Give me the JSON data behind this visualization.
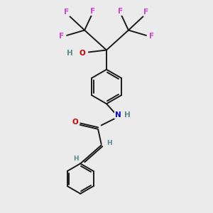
{
  "bg_color": "#ebebeb",
  "bond_color": "#1a1a1a",
  "F_color": "#cc44cc",
  "O_color": "#cc0000",
  "N_color": "#0000cc",
  "H_color": "#5a8a8a",
  "figsize": [
    3.0,
    3.0
  ],
  "dpi": 100,
  "xlim": [
    0,
    10
  ],
  "ylim": [
    0,
    10
  ]
}
